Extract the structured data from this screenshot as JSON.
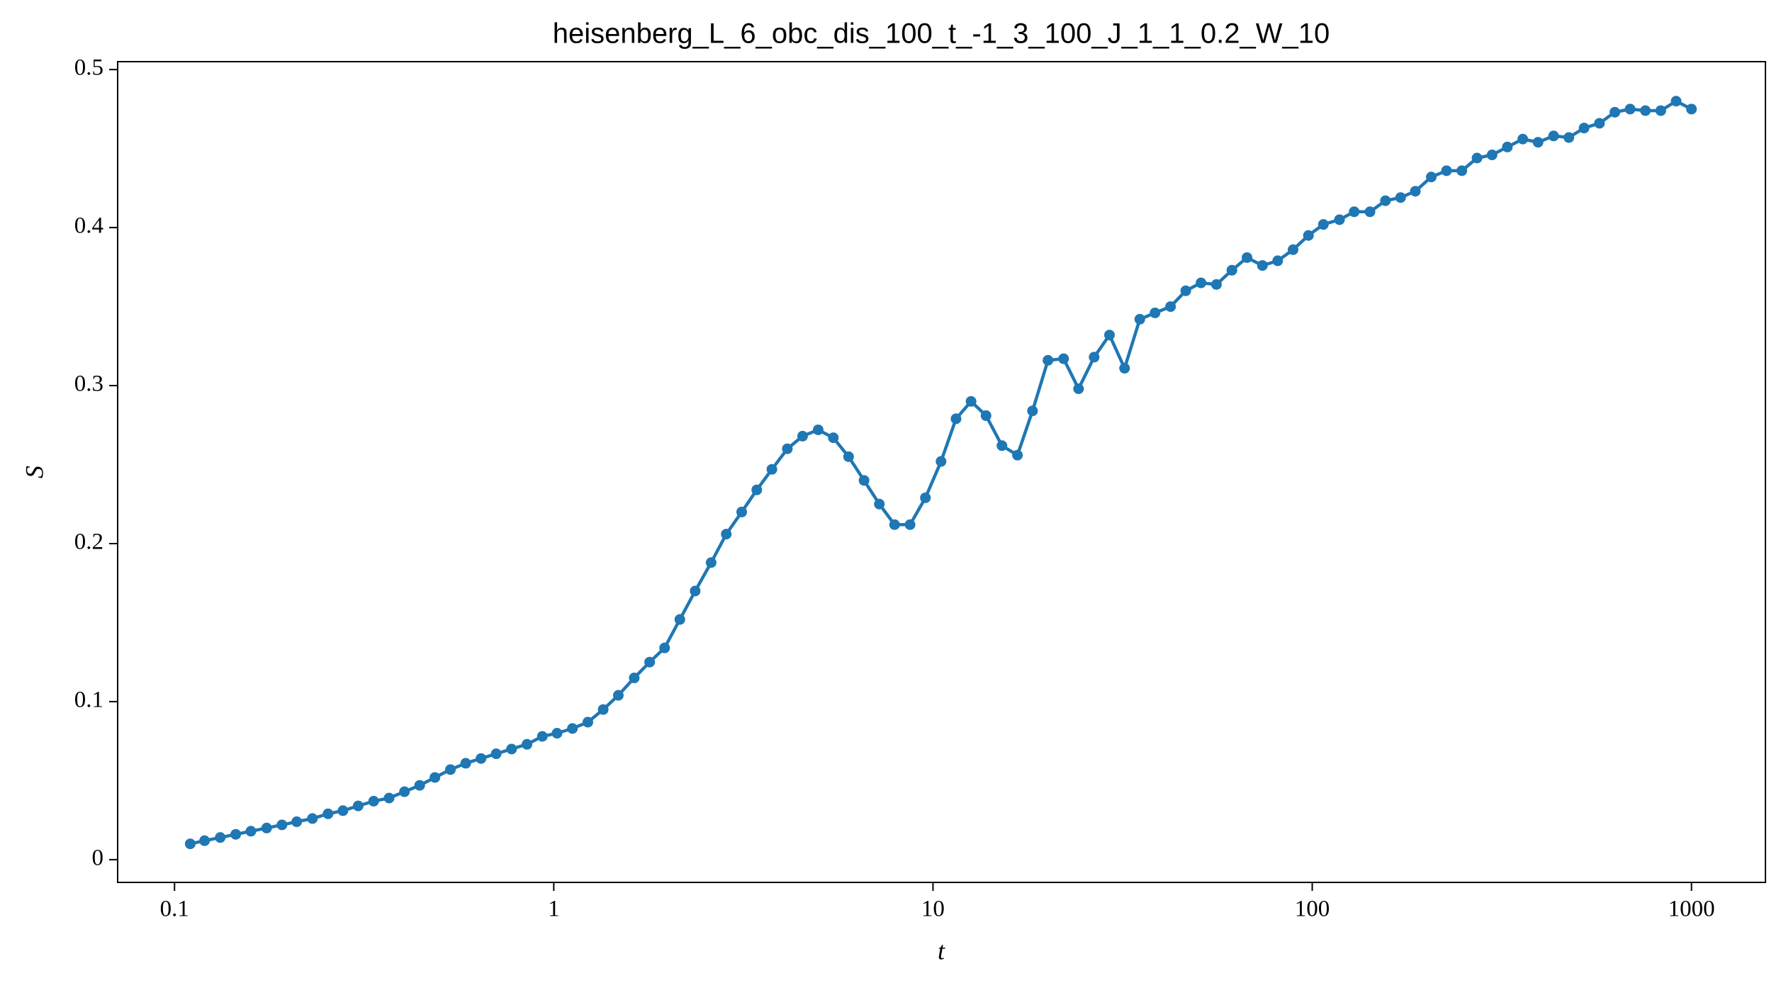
{
  "chart_data": {
    "type": "line",
    "title": "heisenberg_L_6_obc_dis_100_t_-1_3_100_J_1_1_0.2_W_10",
    "x_label": "t",
    "y_label": "S",
    "x_scale": "log",
    "x": [
      0.11,
      0.12,
      0.132,
      0.145,
      0.159,
      0.175,
      0.192,
      0.21,
      0.231,
      0.254,
      0.278,
      0.305,
      0.335,
      0.368,
      0.404,
      0.443,
      0.486,
      0.534,
      0.586,
      0.643,
      0.705,
      0.774,
      0.85,
      0.933,
      1.02,
      1.12,
      1.23,
      1.35,
      1.48,
      1.63,
      1.79,
      1.96,
      2.15,
      2.36,
      2.6,
      2.85,
      3.13,
      3.43,
      3.76,
      4.13,
      4.53,
      4.98,
      5.46,
      5.99,
      6.58,
      7.22,
      7.92,
      8.7,
      9.55,
      10.5,
      11.5,
      12.6,
      13.8,
      15.2,
      16.7,
      18.3,
      20.1,
      22.1,
      24.2,
      26.6,
      29.2,
      32.0,
      35.1,
      38.5,
      42.3,
      46.4,
      50.9,
      55.9,
      61.4,
      67.3,
      73.9,
      81.1,
      89.0,
      97.7,
      107,
      118,
      129,
      142,
      156,
      171,
      187,
      206,
      226,
      248,
      272,
      298,
      327,
      359,
      394,
      433,
      475,
      521,
      572,
      628,
      689,
      756,
      830,
      911,
      1000
    ],
    "series": [
      {
        "name": "S",
        "color": "#1f77b4",
        "values": [
          0.01,
          0.012,
          0.014,
          0.016,
          0.018,
          0.02,
          0.022,
          0.024,
          0.026,
          0.029,
          0.031,
          0.034,
          0.037,
          0.039,
          0.043,
          0.047,
          0.052,
          0.057,
          0.061,
          0.064,
          0.067,
          0.07,
          0.073,
          0.078,
          0.08,
          0.083,
          0.087,
          0.095,
          0.104,
          0.115,
          0.125,
          0.134,
          0.152,
          0.17,
          0.188,
          0.206,
          0.22,
          0.234,
          0.247,
          0.26,
          0.268,
          0.272,
          0.267,
          0.255,
          0.24,
          0.225,
          0.212,
          0.212,
          0.229,
          0.252,
          0.279,
          0.29,
          0.281,
          0.262,
          0.256,
          0.284,
          0.316,
          0.317,
          0.298,
          0.318,
          0.332,
          0.311,
          0.342,
          0.346,
          0.35,
          0.36,
          0.365,
          0.364,
          0.373,
          0.381,
          0.376,
          0.379,
          0.386,
          0.395,
          0.402,
          0.405,
          0.41,
          0.41,
          0.417,
          0.419,
          0.423,
          0.432,
          0.436,
          0.436,
          0.444,
          0.446,
          0.451,
          0.456,
          0.454,
          0.458,
          0.457,
          0.463,
          0.466,
          0.473,
          0.475,
          0.474,
          0.474,
          0.48,
          0.475
        ]
      }
    ],
    "xlim": [
      0.0708,
      1567
    ],
    "xticks": [
      0.1,
      1,
      10,
      100,
      1000
    ],
    "ylim": [
      -0.0144,
      0.505
    ],
    "yticks": [
      0,
      0.1,
      0.2,
      0.3,
      0.4,
      0.5
    ],
    "grid": false,
    "markers": true
  }
}
